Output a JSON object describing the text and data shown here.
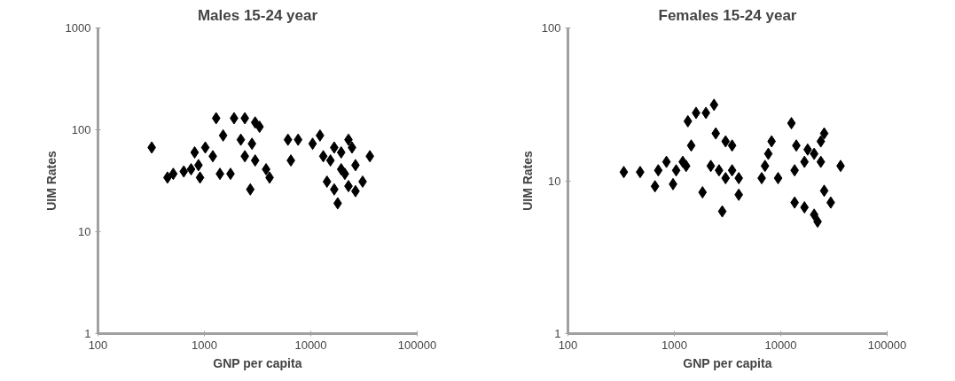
{
  "chart_data": [
    {
      "type": "scatter",
      "title": "Males 15-24 year",
      "xlabel": "GNP per capita",
      "ylabel": "UIM Rates",
      "log": "xy",
      "marker": "diamond",
      "grid": false,
      "color": "#000000",
      "xlim": [
        100,
        100000
      ],
      "ylim": [
        1,
        1000
      ],
      "xticks": [
        100,
        1000,
        10000,
        100000
      ],
      "yticks": [
        1,
        10,
        100,
        1000
      ],
      "x": [
        320,
        450,
        510,
        640,
        750,
        810,
        880,
        910,
        1020,
        1200,
        1290,
        1400,
        1500,
        1760,
        1900,
        2200,
        2400,
        2700,
        2800,
        3000,
        3300,
        2400,
        3000,
        3800,
        4100,
        6100,
        7600,
        6500,
        10400,
        12200,
        13100,
        15300,
        16600,
        22600,
        24400,
        19300,
        26300,
        35900,
        14200,
        16600,
        17900,
        22600,
        30700,
        20900,
        26300,
        19300
      ],
      "values": [
        67,
        34,
        37,
        39,
        41,
        60,
        45,
        34,
        67,
        55,
        130,
        37,
        88,
        37,
        130,
        80,
        130,
        26,
        73,
        118,
        107,
        55,
        50,
        41,
        34,
        80,
        80,
        50,
        73,
        88,
        55,
        50,
        67,
        80,
        67,
        41,
        45,
        55,
        31,
        26,
        19,
        28,
        31,
        37,
        25,
        60
      ]
    },
    {
      "type": "scatter",
      "title": "Females 15-24 year",
      "xlabel": "GNP per capita",
      "ylabel": "UIM Rates",
      "log": "xy",
      "marker": "diamond",
      "grid": false,
      "color": "#000000",
      "xlim": [
        100,
        100000
      ],
      "ylim": [
        1,
        100
      ],
      "xticks": [
        100,
        1000,
        10000,
        100000
      ],
      "yticks": [
        1,
        10,
        100
      ],
      "x": [
        335,
        477,
        658,
        706,
        843,
        972,
        1040,
        1200,
        1290,
        1440,
        1340,
        1600,
        1980,
        2360,
        1840,
        2450,
        3030,
        3490,
        2200,
        2630,
        3030,
        3490,
        4030,
        4030,
        2820,
        6620,
        7110,
        7640,
        8200,
        9440,
        12600,
        14000,
        13500,
        16700,
        17900,
        20600,
        23800,
        25600,
        36500,
        13500,
        16700,
        20600,
        22200,
        25600,
        29500,
        23800
      ],
      "values": [
        11.4,
        11.4,
        9.2,
        11.7,
        13.3,
        9.5,
        11.7,
        13.3,
        12.5,
        17,
        24.5,
        27.8,
        27.8,
        31.4,
        8.4,
        20.4,
        18.1,
        17,
        12.5,
        11.7,
        10.4,
        11.7,
        10.4,
        8.1,
        6.3,
        10.4,
        12.5,
        15,
        18.1,
        10.4,
        23.8,
        17,
        11.7,
        13.3,
        16,
        15,
        18.1,
        20.4,
        12.5,
        7.2,
        6.7,
        6,
        5.4,
        8.6,
        7.2,
        13.3
      ]
    }
  ]
}
